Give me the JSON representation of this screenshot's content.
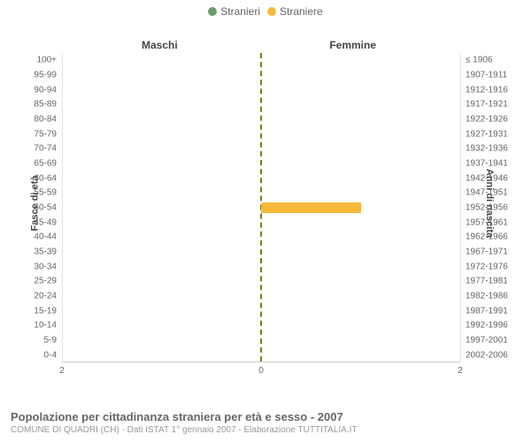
{
  "legend": {
    "items": [
      {
        "label": "Stranieri",
        "color": "#6b9b6b"
      },
      {
        "label": "Straniere",
        "color": "#f7b93c"
      }
    ]
  },
  "chart": {
    "type": "population-pyramid",
    "subtitle_left": "Maschi",
    "subtitle_right": "Femmine",
    "y_axis_left_label": "Fasce di età",
    "y_axis_right_label": "Anni di nascita",
    "x_max": 2,
    "x_ticks": [
      {
        "pos": 0,
        "label": "2"
      },
      {
        "pos": 50,
        "label": "0"
      },
      {
        "pos": 100,
        "label": "2"
      }
    ],
    "background_color": "#ffffff",
    "grid_color": "#e5e5e5",
    "center_line_color": "#808000",
    "male_bar_color": "#6b9b6b",
    "female_bar_color": "#f7b93c",
    "tick_font_size": 10,
    "tick_color": "#666666",
    "rows": [
      {
        "age": "100+",
        "birth": "≤ 1906",
        "m": 0,
        "f": 0
      },
      {
        "age": "95-99",
        "birth": "1907-1911",
        "m": 0,
        "f": 0
      },
      {
        "age": "90-94",
        "birth": "1912-1916",
        "m": 0,
        "f": 0
      },
      {
        "age": "85-89",
        "birth": "1917-1921",
        "m": 0,
        "f": 0
      },
      {
        "age": "80-84",
        "birth": "1922-1926",
        "m": 0,
        "f": 0
      },
      {
        "age": "75-79",
        "birth": "1927-1931",
        "m": 0,
        "f": 0
      },
      {
        "age": "70-74",
        "birth": "1932-1936",
        "m": 0,
        "f": 0
      },
      {
        "age": "65-69",
        "birth": "1937-1941",
        "m": 0,
        "f": 0
      },
      {
        "age": "60-64",
        "birth": "1942-1946",
        "m": 0,
        "f": 0
      },
      {
        "age": "55-59",
        "birth": "1947-1951",
        "m": 0,
        "f": 0
      },
      {
        "age": "50-54",
        "birth": "1952-1956",
        "m": 0,
        "f": 1
      },
      {
        "age": "45-49",
        "birth": "1957-1961",
        "m": 0,
        "f": 0
      },
      {
        "age": "40-44",
        "birth": "1962-1966",
        "m": 0,
        "f": 0
      },
      {
        "age": "35-39",
        "birth": "1967-1971",
        "m": 0,
        "f": 0
      },
      {
        "age": "30-34",
        "birth": "1972-1976",
        "m": 0,
        "f": 0
      },
      {
        "age": "25-29",
        "birth": "1977-1981",
        "m": 0,
        "f": 0
      },
      {
        "age": "20-24",
        "birth": "1982-1986",
        "m": 0,
        "f": 0
      },
      {
        "age": "15-19",
        "birth": "1987-1991",
        "m": 0,
        "f": 0
      },
      {
        "age": "10-14",
        "birth": "1992-1996",
        "m": 0,
        "f": 0
      },
      {
        "age": "5-9",
        "birth": "1997-2001",
        "m": 0,
        "f": 0
      },
      {
        "age": "0-4",
        "birth": "2002-2006",
        "m": 0,
        "f": 0
      }
    ]
  },
  "footer": {
    "title": "Popolazione per cittadinanza straniera per età e sesso - 2007",
    "subtitle": "COMUNE DI QUADRI (CH) - Dati ISTAT 1° gennaio 2007 - Elaborazione TUTTITALIA.IT"
  }
}
